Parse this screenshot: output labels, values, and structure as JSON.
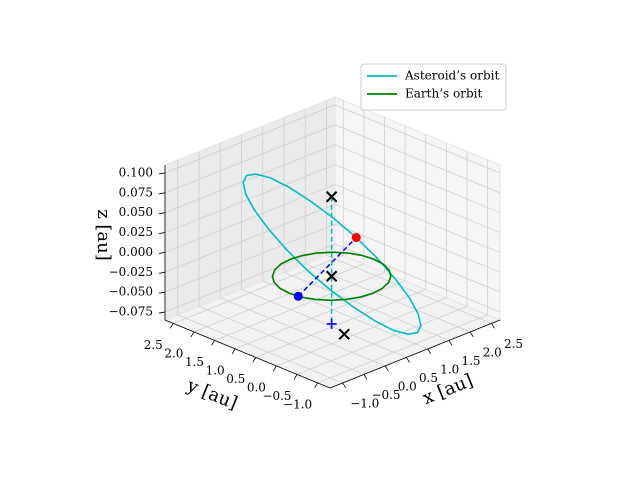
{
  "chart_data": {
    "type": "line3d",
    "xlabel": "x [au]",
    "ylabel": "y [au]",
    "zlabel": "z [au]",
    "xlim": [
      -1.3,
      2.7
    ],
    "ylim": [
      -1.3,
      2.7
    ],
    "zlim": [
      -0.085,
      0.11
    ],
    "xticks": [
      {
        "value": -1,
        "label": "−1.0"
      },
      {
        "value": -0.5,
        "label": "−0.5"
      },
      {
        "value": 0,
        "label": "0.0"
      },
      0.5,
      {
        "value": 1,
        "label": "1.0"
      },
      1.5,
      {
        "value": 2,
        "label": "2.0"
      },
      2.5
    ],
    "yticks": [
      {
        "value": -1,
        "label": "−1.0"
      },
      {
        "value": -0.5,
        "label": "−0.5"
      },
      {
        "value": 0,
        "label": "0.0"
      },
      0.5,
      {
        "value": 1,
        "label": "1.0"
      },
      1.5,
      {
        "value": 2,
        "label": "2.0"
      },
      2.5
    ],
    "zticks": [
      {
        "value": -0.075,
        "label": "−0.075"
      },
      {
        "value": -0.05,
        "label": "−0.050"
      },
      {
        "value": -0.025,
        "label": "−0.025"
      },
      {
        "value": 0,
        "label": "0.000"
      },
      0.025,
      {
        "value": 0.05,
        "label": "0.050"
      },
      0.075,
      {
        "value": 0.1,
        "label": "0.100"
      }
    ],
    "grid": true,
    "legend": "upper right",
    "series": [
      {
        "name": "Asteroid’s orbit",
        "color": "#00bfbf",
        "x": [
          1.8,
          1.749,
          1.599,
          1.361,
          1.05,
          0.688,
          0.3,
          -0.088,
          -0.45,
          -0.761,
          -0.999,
          -1.149,
          -1.2,
          -1.149,
          -0.999,
          -0.761,
          -0.45,
          -0.088,
          0.3,
          0.688,
          1.05,
          1.361,
          1.599,
          1.749,
          1.8
        ],
        "y": [
          0.3,
          0.688,
          1.05,
          1.361,
          1.599,
          1.749,
          1.8,
          1.749,
          1.599,
          1.361,
          1.05,
          0.688,
          0.3,
          -0.088,
          -0.45,
          -0.761,
          -0.999,
          -1.149,
          -1.2,
          -1.149,
          -0.999,
          -0.761,
          -0.45,
          -0.088,
          0.3
        ],
        "z": [
          -0.049,
          -0.03,
          -0.008,
          0.015,
          0.038,
          0.06,
          0.079,
          0.093,
          0.102,
          0.105,
          0.102,
          0.093,
          0.079,
          0.06,
          0.038,
          0.015,
          -0.008,
          -0.03,
          -0.049,
          -0.063,
          -0.072,
          -0.075,
          -0.072,
          -0.063,
          -0.049
        ]
      },
      {
        "name": "Earth’s orbit",
        "color": "#008000",
        "x": [
          1,
          0.966,
          0.866,
          0.707,
          0.5,
          0.259,
          0,
          -0.259,
          -0.5,
          -0.707,
          -0.866,
          -0.966,
          -1,
          -0.966,
          -0.866,
          -0.707,
          -0.5,
          -0.259,
          0,
          0.259,
          0.5,
          0.707,
          0.866,
          0.966,
          1
        ],
        "y": [
          0,
          0.259,
          0.5,
          0.707,
          0.866,
          0.966,
          1,
          0.966,
          0.866,
          0.707,
          0.5,
          0.259,
          0,
          -0.259,
          -0.5,
          -0.707,
          -0.866,
          -0.966,
          -1,
          -0.966,
          -0.866,
          -0.707,
          -0.5,
          -0.259,
          0
        ],
        "z": [
          0,
          0,
          0,
          0,
          0,
          0,
          0,
          0,
          0,
          0,
          0,
          0,
          0,
          0,
          0,
          0,
          0,
          0,
          0,
          0,
          0,
          0,
          0,
          0,
          0
        ]
      }
    ],
    "dashed_lines": [
      {
        "color": "#0000ff",
        "x": [
          -0.98,
          1.599
        ],
        "y": [
          -0.2,
          1.05
        ],
        "z": [
          0,
          -0.008
        ]
      },
      {
        "color": "#00bfbf",
        "x": [
          0,
          0
        ],
        "y": [
          0,
          0
        ],
        "z": [
          0.1,
          -0.06
        ]
      }
    ],
    "markers": {
      "x": [
        -0.98,
        1.599,
        0,
        0,
        0,
        0.2
      ],
      "y": [
        -0.2,
        1.05,
        0,
        0,
        0,
        -0.1
      ],
      "z": [
        0,
        -0.008,
        0,
        0.1,
        -0.06,
        -0.075
      ],
      "colors": [
        "#0000ff",
        "#ff0000",
        "#000000",
        "#000000",
        "#0000ff",
        "#000000"
      ],
      "symbols": [
        "o",
        "o",
        "x",
        "x",
        "+",
        "x"
      ]
    }
  }
}
